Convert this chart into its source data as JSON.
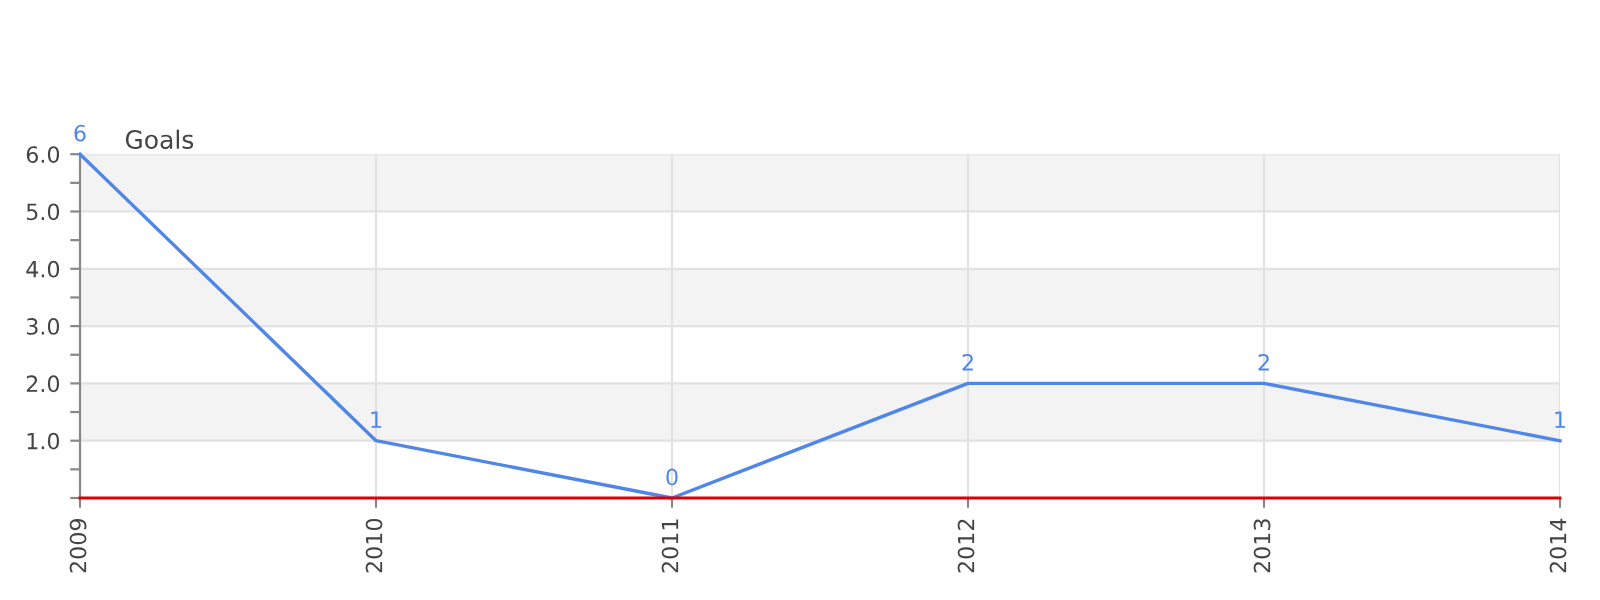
{
  "chart_data": {
    "type": "line",
    "title": "Goals",
    "x": [
      2009,
      2010,
      2011,
      2012,
      2013,
      2014
    ],
    "series": [
      {
        "color": "#4f86e8",
        "values": [
          6,
          1,
          0,
          2,
          2,
          1
        ]
      }
    ],
    "xlim": [
      2009,
      2014
    ],
    "xticks": [
      2009,
      2010,
      2011,
      2012,
      2013,
      2014
    ],
    "ylim": [
      0,
      6
    ],
    "yticks": [
      {
        "value": 0,
        "label": null
      },
      {
        "value": 0.5,
        "label": null
      },
      {
        "value": 1,
        "label": "1.0"
      },
      {
        "value": 1.5,
        "label": null
      },
      {
        "value": 2,
        "label": "2.0"
      },
      {
        "value": 2.5,
        "label": null
      },
      {
        "value": 3,
        "label": "3.0"
      },
      {
        "value": 3.5,
        "label": null
      },
      {
        "value": 4,
        "label": "4.0"
      },
      {
        "value": 4.5,
        "label": null
      },
      {
        "value": 5,
        "label": "5.0"
      },
      {
        "value": 5.5,
        "label": null
      },
      {
        "value": 6,
        "label": "6.0"
      }
    ],
    "bands": [
      {
        "axis": "y",
        "from": 1,
        "to": 2,
        "color": "#f3f3f3"
      },
      {
        "axis": "y",
        "from": 3,
        "to": 4,
        "color": "#f3f3f3"
      },
      {
        "axis": "y",
        "from": 5,
        "to": 6,
        "color": "#f3f3f3"
      }
    ],
    "ref_lines": [
      {
        "axis": "y",
        "value": 0,
        "color": "#dd0000"
      }
    ],
    "grid": true,
    "data_labels": true,
    "marker": "none",
    "line_style": "solid"
  }
}
